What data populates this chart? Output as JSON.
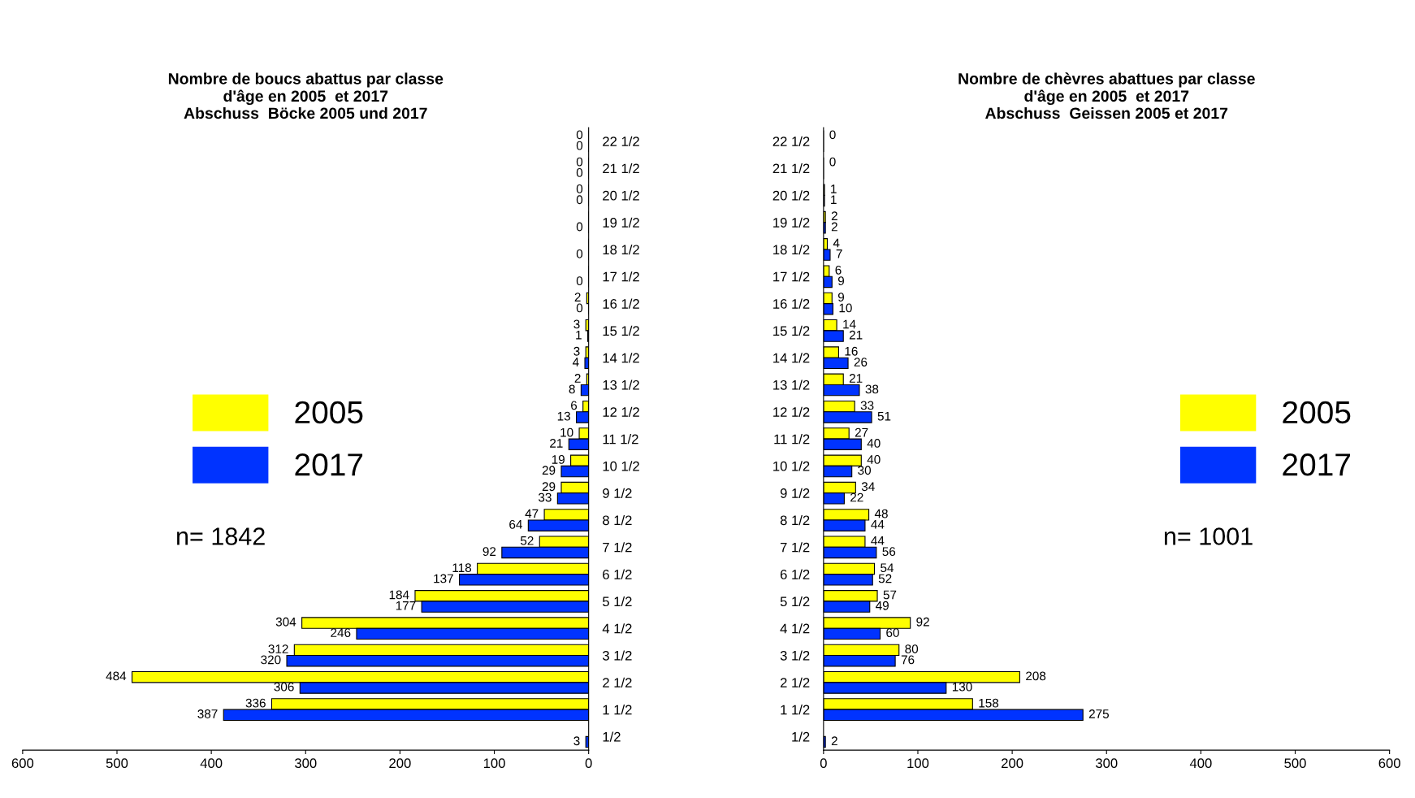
{
  "chart_data": [
    {
      "type": "bar",
      "orientation": "horizontal",
      "title": "Nombre de boucs abattus par classe\nd'âge en 2005  et 2017\nAbschuss  Böcke 2005 und 2017",
      "categories": [
        "22 1/2",
        "21 1/2",
        "20 1/2",
        "19 1/2",
        "18 1/2",
        "17 1/2",
        "16 1/2",
        "15 1/2",
        "14 1/2",
        "13 1/2",
        "12 1/2",
        "11 1/2",
        "10 1/2",
        "9 1/2",
        "8 1/2",
        "7 1/2",
        "6 1/2",
        "5 1/2",
        "4 1/2",
        "3 1/2",
        "2 1/2",
        "1 1/2",
        "1/2"
      ],
      "series": [
        {
          "name": "2005",
          "color": "#ffff00",
          "values": [
            0,
            0,
            0,
            0,
            0,
            0,
            2,
            3,
            3,
            2,
            6,
            10,
            19,
            29,
            47,
            52,
            118,
            184,
            304,
            312,
            484,
            336,
            null
          ],
          "value_labels": [
            "0",
            "0",
            "0",
            null,
            null,
            null,
            "2",
            "3",
            "3",
            "2",
            "6",
            "10",
            "19",
            "29",
            "47",
            "52",
            "118",
            "184",
            "304",
            "312",
            "484",
            "336",
            null
          ]
        },
        {
          "name": "2017",
          "color": "#0033ff",
          "values": [
            0,
            0,
            0,
            0,
            0,
            0,
            0,
            1,
            4,
            8,
            13,
            21,
            29,
            33,
            64,
            92,
            137,
            177,
            246,
            320,
            306,
            387,
            3
          ],
          "value_labels": [
            "0",
            "0",
            "0",
            "0",
            "0",
            "0",
            "0",
            "1",
            "4",
            "8",
            "13",
            "21",
            "29",
            "33",
            "64",
            "92",
            "137",
            "177",
            "246",
            "320",
            "306",
            "387",
            "3"
          ]
        }
      ],
      "xlim": [
        600,
        0
      ],
      "xticks": [
        600,
        500,
        400,
        300,
        200,
        100,
        0
      ],
      "legend": "left",
      "annotations": [
        "n= 1842"
      ]
    },
    {
      "type": "bar",
      "orientation": "horizontal",
      "title": "Nombre de chèvres abattues par classe\nd'âge en 2005  et 2017\nAbschuss  Geissen 2005 et 2017",
      "categories": [
        "22 1/2",
        "21 1/2",
        "20 1/2",
        "19 1/2",
        "18 1/2",
        "17 1/2",
        "16 1/2",
        "15 1/2",
        "14 1/2",
        "13 1/2",
        "12 1/2",
        "11 1/2",
        "10 1/2",
        "9 1/2",
        "8 1/2",
        "7 1/2",
        "6 1/2",
        "5 1/2",
        "4 1/2",
        "3 1/2",
        "2 1/2",
        "1 1/2",
        "1/2"
      ],
      "series": [
        {
          "name": "2005",
          "color": "#ffff00",
          "values": [
            0,
            0,
            1,
            2,
            4,
            6,
            9,
            14,
            16,
            21,
            33,
            27,
            40,
            34,
            48,
            44,
            54,
            57,
            92,
            80,
            208,
            158,
            null
          ],
          "value_labels": [
            "0",
            "0",
            "1",
            "2",
            "4",
            "6",
            "9",
            "14",
            "16",
            "21",
            "33",
            "27",
            "40",
            "34",
            "48",
            "44",
            "54",
            "57",
            "92",
            "80",
            "208",
            "158",
            null
          ]
        },
        {
          "name": "2017",
          "color": "#0033ff",
          "values": [
            0,
            0,
            1,
            2,
            7,
            9,
            10,
            21,
            26,
            38,
            51,
            40,
            30,
            22,
            44,
            56,
            52,
            49,
            60,
            76,
            130,
            275,
            2
          ],
          "value_labels": [
            null,
            null,
            "1",
            "2",
            "7",
            "9",
            "10",
            "21",
            "26",
            "38",
            "51",
            "40",
            "30",
            "22",
            "44",
            "56",
            "52",
            "49",
            "60",
            "76",
            "130",
            "275",
            "2"
          ]
        }
      ],
      "xlim": [
        0,
        600
      ],
      "xticks": [
        0,
        100,
        200,
        300,
        400,
        500,
        600
      ],
      "legend": "right",
      "annotations": [
        "n= 1001"
      ]
    }
  ]
}
